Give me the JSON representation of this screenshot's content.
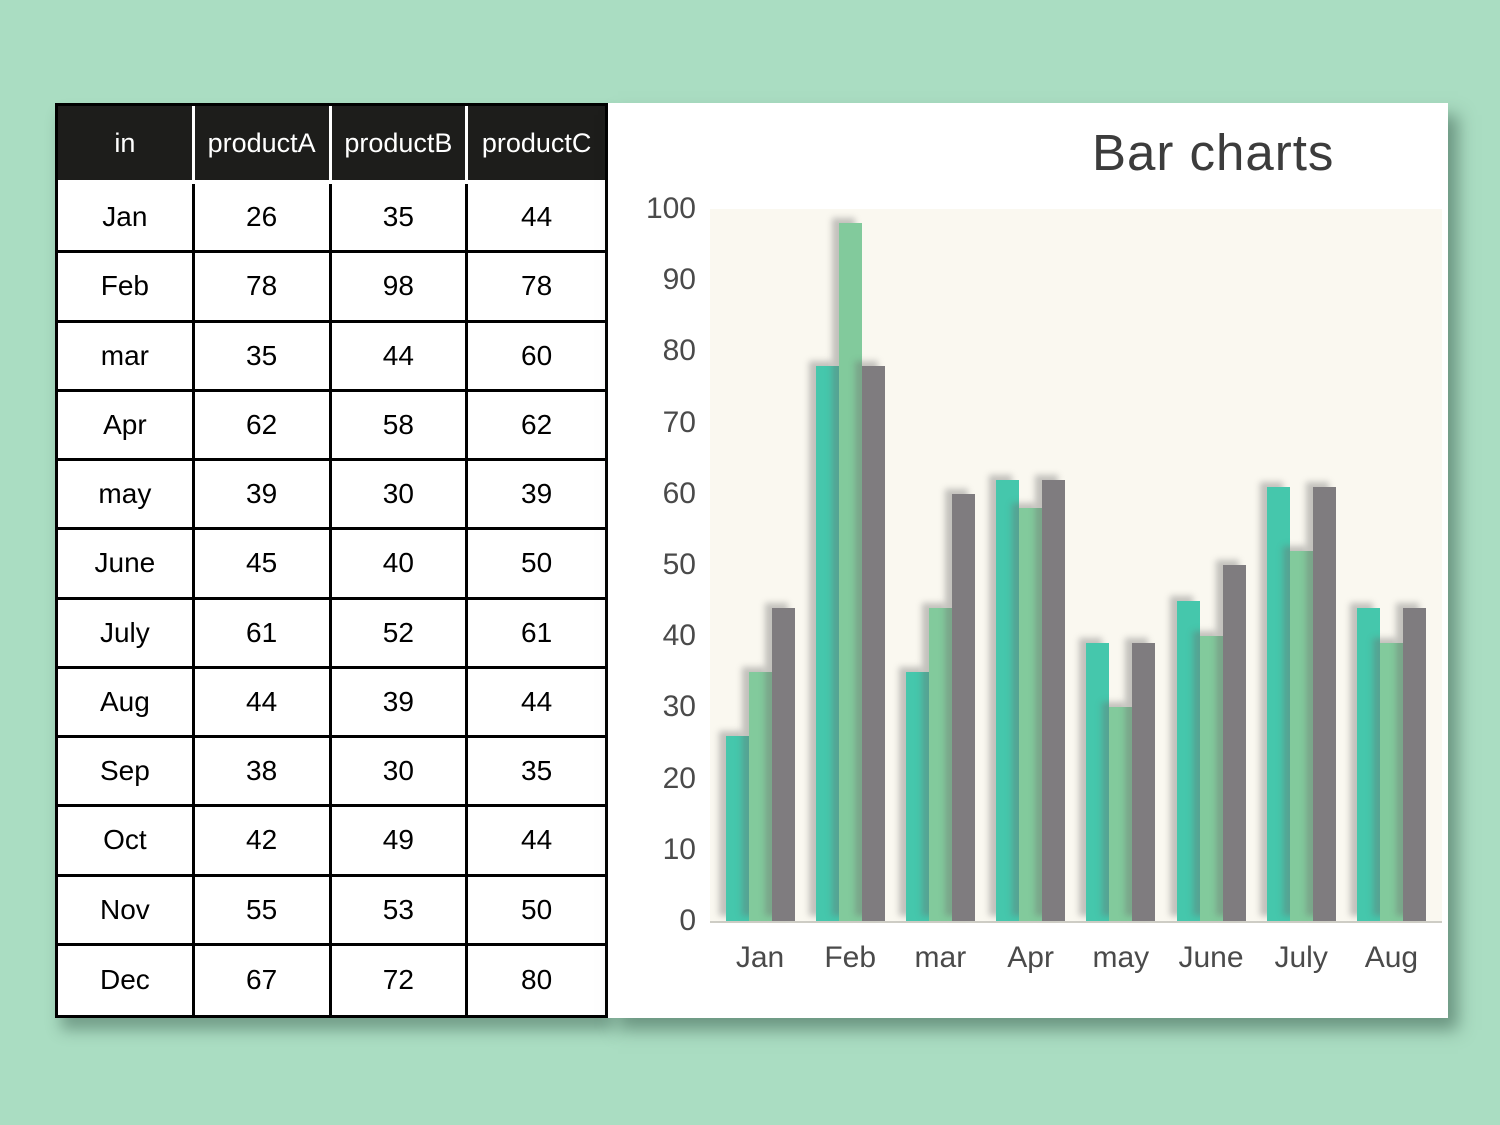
{
  "page": {
    "background": "#aaddc2",
    "panel_background": "#ffffff"
  },
  "table": {
    "columns": [
      "in",
      "productA",
      "productB",
      "productC"
    ],
    "rows": [
      [
        "Jan",
        26,
        35,
        44
      ],
      [
        "Feb",
        78,
        98,
        78
      ],
      [
        "mar",
        35,
        44,
        60
      ],
      [
        "Apr",
        62,
        58,
        62
      ],
      [
        "may",
        39,
        30,
        39
      ],
      [
        "June",
        45,
        40,
        50
      ],
      [
        "July",
        61,
        52,
        61
      ],
      [
        "Aug",
        44,
        39,
        44
      ],
      [
        "Sep",
        38,
        30,
        35
      ],
      [
        "Oct",
        42,
        49,
        44
      ],
      [
        "Nov",
        55,
        53,
        50
      ],
      [
        "Dec",
        67,
        72,
        80
      ]
    ],
    "header_bg": "#1d1d1b",
    "header_text_color": "#ffffff"
  },
  "chart_data": {
    "type": "bar",
    "title": "Bar charts",
    "categories": [
      "Jan",
      "Feb",
      "mar",
      "Apr",
      "may",
      "June",
      "July",
      "Aug"
    ],
    "series": [
      {
        "name": "productA",
        "color": "#45c7ac",
        "values": [
          26,
          78,
          35,
          62,
          39,
          45,
          61,
          44
        ]
      },
      {
        "name": "productB",
        "color": "#82ca9c",
        "values": [
          35,
          98,
          44,
          58,
          30,
          40,
          52,
          39
        ]
      },
      {
        "name": "productC",
        "color": "#7f7c7f",
        "values": [
          44,
          78,
          60,
          62,
          39,
          50,
          61,
          44
        ]
      }
    ],
    "ylabel": "",
    "xlabel": "",
    "ylim": [
      0,
      100
    ],
    "yticks": [
      0,
      10,
      20,
      30,
      40,
      50,
      60,
      70,
      80,
      90,
      100
    ],
    "grid": false,
    "legend_position": "none",
    "plot_background": "#faf8f0"
  }
}
